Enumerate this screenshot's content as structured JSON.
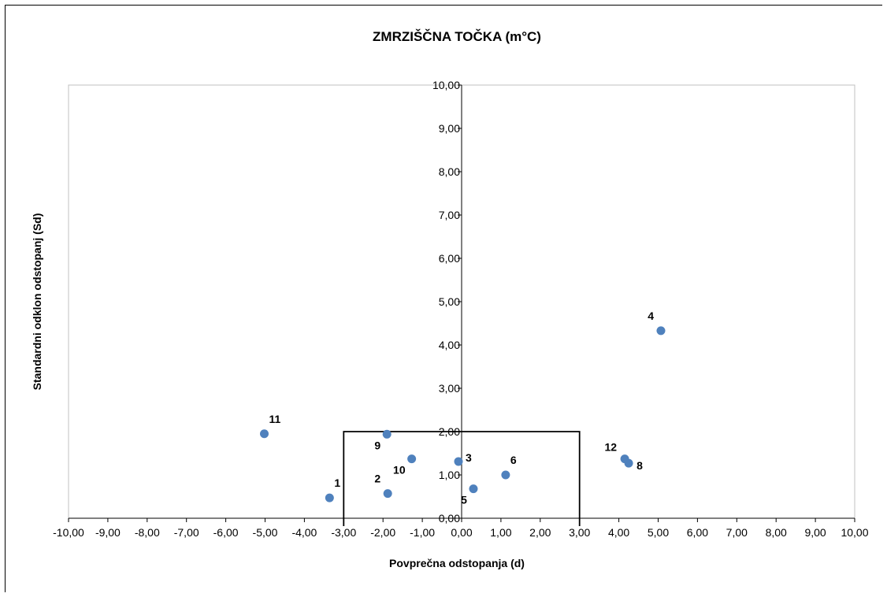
{
  "chart_data": {
    "type": "scatter",
    "title": "ZMRZIŠČNA  TOČKA (m°C)",
    "xlabel": "Povprečna odstopanja (d)",
    "ylabel": "Standardni odklon odstopanj (Sd)",
    "xlim": [
      -10,
      10
    ],
    "ylim": [
      0,
      10
    ],
    "x_ticks": [
      "-10,00",
      "-9,00",
      "-8,00",
      "-7,00",
      "-6,00",
      "-5,00",
      "-4,00",
      "-3,00",
      "-2,00",
      "-1,00",
      "0,00",
      "1,00",
      "2,00",
      "3,00",
      "4,00",
      "5,00",
      "6,00",
      "7,00",
      "8,00",
      "9,00",
      "10,00"
    ],
    "y_ticks": [
      "0,00",
      "1,00",
      "2,00",
      "3,00",
      "4,00",
      "5,00",
      "6,00",
      "7,00",
      "8,00",
      "9,00",
      "10,00"
    ],
    "grid": false,
    "marker_color": "#4f81bd",
    "acceptance_box": {
      "x": [
        -3,
        3
      ],
      "y": [
        0,
        2
      ]
    },
    "points": [
      {
        "label": "1",
        "x": -3.36,
        "y": 0.47,
        "label_pos": "above-right"
      },
      {
        "label": "2",
        "x": -1.88,
        "y": 0.57,
        "label_pos": "above-left"
      },
      {
        "label": "3",
        "x": -0.08,
        "y": 1.31,
        "label_pos": "right"
      },
      {
        "label": "4",
        "x": 5.07,
        "y": 4.33,
        "label_pos": "above-left"
      },
      {
        "label": "5",
        "x": 0.3,
        "y": 0.68,
        "label_pos": "below-left"
      },
      {
        "label": "6",
        "x": 1.12,
        "y": 1.0,
        "label_pos": "above-right"
      },
      {
        "label": "8",
        "x": 4.25,
        "y": 1.27,
        "label_pos": "below-right"
      },
      {
        "label": "9",
        "x": -1.9,
        "y": 1.94,
        "label_pos": "below-left"
      },
      {
        "label": "10",
        "x": -1.27,
        "y": 1.37,
        "label_pos": "below-left"
      },
      {
        "label": "11",
        "x": -5.02,
        "y": 1.95,
        "label_pos": "above-right"
      },
      {
        "label": "12",
        "x": 4.15,
        "y": 1.37,
        "label_pos": "left"
      }
    ]
  }
}
